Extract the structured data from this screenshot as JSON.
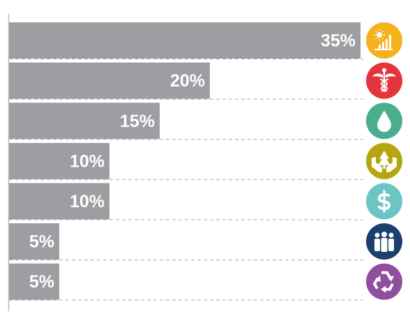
{
  "chart_data": {
    "type": "bar",
    "orientation": "horizontal",
    "categories": [
      null,
      null,
      null,
      null,
      null,
      null,
      null
    ],
    "values": [
      35,
      20,
      15,
      10,
      10,
      5,
      5
    ],
    "value_labels": [
      "35%",
      "20%",
      "15%",
      "10%",
      "10%",
      "5%",
      "5%"
    ],
    "color": "#9d9ea2",
    "icon_colors": [
      "#f5b21c",
      "#e5343b",
      "#4aad8e",
      "#b5a50f",
      "#6cc5c4",
      "#1b3f6e",
      "#8f4f9e"
    ],
    "xlim": [
      0,
      35
    ]
  }
}
